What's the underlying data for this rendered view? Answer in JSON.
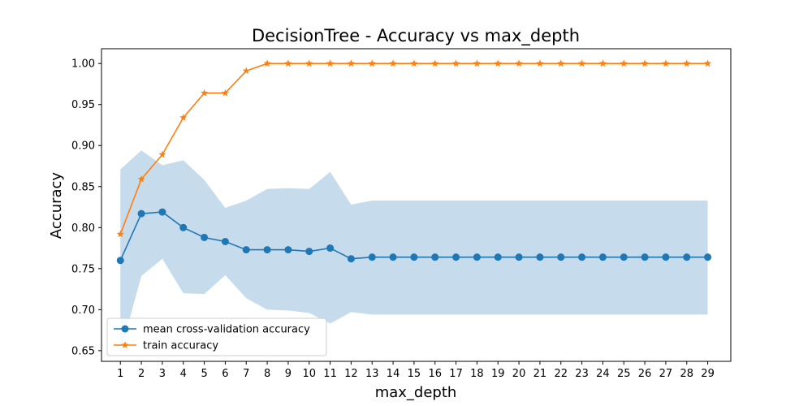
{
  "chart_data": {
    "type": "line",
    "title": "DecisionTree - Accuracy vs max_depth",
    "xlabel": "max_depth",
    "ylabel": "Accuracy",
    "x": [
      1,
      2,
      3,
      4,
      5,
      6,
      7,
      8,
      9,
      10,
      11,
      12,
      13,
      14,
      15,
      16,
      17,
      18,
      19,
      20,
      21,
      22,
      23,
      24,
      25,
      26,
      27,
      28,
      29
    ],
    "xlim": [
      0.1,
      30.1
    ],
    "ylim": [
      0.637,
      1.018
    ],
    "yticks": [
      0.65,
      0.7,
      0.75,
      0.8,
      0.85,
      0.9,
      0.95,
      1.0
    ],
    "ytick_labels": [
      "0.65",
      "0.70",
      "0.75",
      "0.80",
      "0.85",
      "0.90",
      "0.95",
      "1.00"
    ],
    "grid": false,
    "legend_position": "lower-left",
    "band": {
      "upper": [
        0.871,
        0.894,
        0.876,
        0.882,
        0.858,
        0.824,
        0.833,
        0.847,
        0.848,
        0.847,
        0.868,
        0.828,
        0.833,
        0.833,
        0.833,
        0.833,
        0.833,
        0.833,
        0.833,
        0.833,
        0.833,
        0.833,
        0.833,
        0.833,
        0.833,
        0.833,
        0.833,
        0.833,
        0.833
      ],
      "lower": [
        0.648,
        0.741,
        0.762,
        0.72,
        0.719,
        0.742,
        0.714,
        0.7,
        0.699,
        0.696,
        0.683,
        0.697,
        0.694,
        0.694,
        0.694,
        0.694,
        0.694,
        0.694,
        0.694,
        0.694,
        0.694,
        0.694,
        0.694,
        0.694,
        0.694,
        0.694,
        0.694,
        0.694,
        0.694
      ],
      "color": "#c6dbec"
    },
    "series": [
      {
        "name": "mean cross-validation accuracy",
        "marker": "circle",
        "color": "#1f77b4",
        "values": [
          0.76,
          0.817,
          0.819,
          0.8,
          0.788,
          0.783,
          0.773,
          0.773,
          0.773,
          0.771,
          0.775,
          0.762,
          0.764,
          0.764,
          0.764,
          0.764,
          0.764,
          0.764,
          0.764,
          0.764,
          0.764,
          0.764,
          0.764,
          0.764,
          0.764,
          0.764,
          0.764,
          0.764,
          0.764
        ]
      },
      {
        "name": "train accuracy",
        "marker": "star",
        "color": "#ff7f0e",
        "values": [
          0.792,
          0.859,
          0.889,
          0.934,
          0.964,
          0.964,
          0.991,
          1.0,
          1.0,
          1.0,
          1.0,
          1.0,
          1.0,
          1.0,
          1.0,
          1.0,
          1.0,
          1.0,
          1.0,
          1.0,
          1.0,
          1.0,
          1.0,
          1.0,
          1.0,
          1.0,
          1.0,
          1.0,
          1.0
        ]
      }
    ]
  }
}
